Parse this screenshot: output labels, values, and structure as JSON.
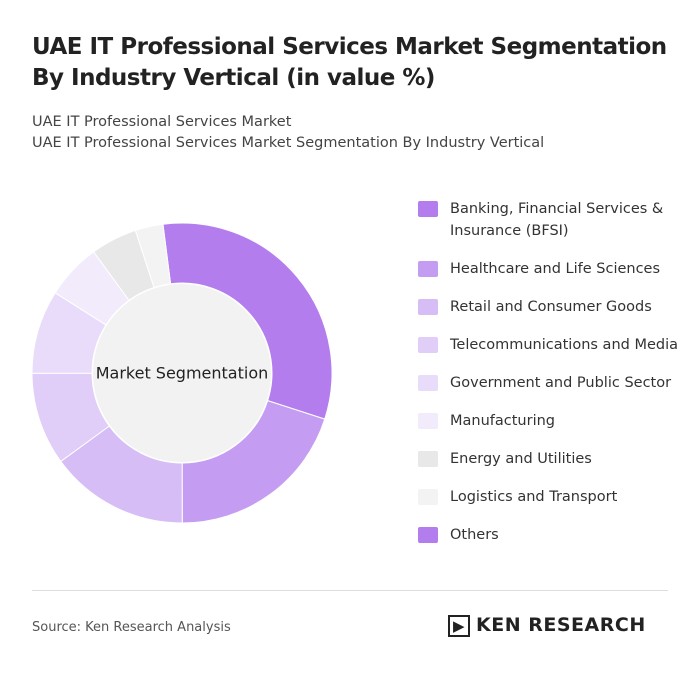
{
  "chart_data": {
    "type": "donut",
    "title": "UAE IT Professional Services Market Segmentation By Industry Vertical (in value %)",
    "subtitle": [
      "UAE IT Professional Services Market",
      "UAE IT Professional Services Market Segmentation By Industry Vertical"
    ],
    "center_label": "Market Segmentation",
    "categories": [
      "Banking, Financial Services & Insurance (BFSI)",
      "Healthcare and Life Sciences",
      "Retail and Consumer Goods",
      "Telecommunications and Media",
      "Government and Public Sector",
      "Manufacturing",
      "Energy and Utilities",
      "Logistics and Transport",
      "Others"
    ],
    "values": [
      32,
      20,
      15,
      10,
      9,
      6,
      5,
      3,
      0
    ],
    "colors": [
      "#b37ded",
      "#c49df2",
      "#d6bdf6",
      "#e0cdf8",
      "#e9dcfa",
      "#f2ebfc",
      "#e8e8e8",
      "#f3f3f3",
      "#b37ded"
    ],
    "source": "Source: Ken Research Analysis",
    "logo": "KEN RESEARCH"
  }
}
